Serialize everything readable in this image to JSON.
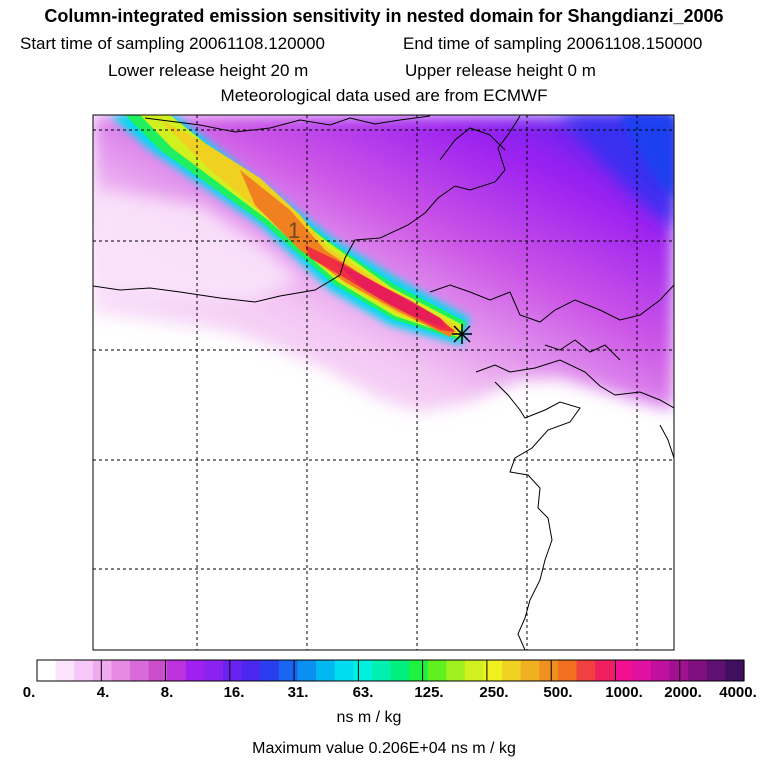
{
  "title": "Column-integrated emission sensitivity in nested domain for Shangdianzi_2006",
  "start_label": "Start time of sampling 20061108.120000",
  "end_label": "End time of sampling 20061108.150000",
  "lower_label": "Lower release height   20 m",
  "upper_label": "Upper release height    0 m",
  "met_label": "Meteorological data used are from ECMWF",
  "contour_label": "1",
  "colorbar": {
    "labels": [
      "0.",
      "4.",
      "8.",
      "16.",
      "31.",
      "63.",
      "125.",
      "250.",
      "500.",
      "1000.",
      "2000.",
      "4000."
    ],
    "units": "ns m / kg",
    "colors": [
      "#ffffff",
      "#fde4fd",
      "#f7c8f7",
      "#f0aaf0",
      "#e68ae6",
      "#d96ad9",
      "#cc4dcc",
      "#bb33dd",
      "#a020f0",
      "#8a22f0",
      "#6a22f0",
      "#4a28f0",
      "#2a3ef0",
      "#1a66f0",
      "#0a90f0",
      "#00b8f0",
      "#00dcf0",
      "#00f0e0",
      "#00f0b0",
      "#00f080",
      "#20f040",
      "#60f020",
      "#a0f020",
      "#d0f020",
      "#f0f020",
      "#f0d020",
      "#f0b020",
      "#f09020",
      "#f07020",
      "#f04040",
      "#f02060",
      "#f01090",
      "#e010a0",
      "#c010a0",
      "#a01090",
      "#801080",
      "#601070",
      "#401060"
    ]
  },
  "max_label": "Maximum value  0.206E+04 ns m / kg",
  "receptor_marker": "station-cross"
}
